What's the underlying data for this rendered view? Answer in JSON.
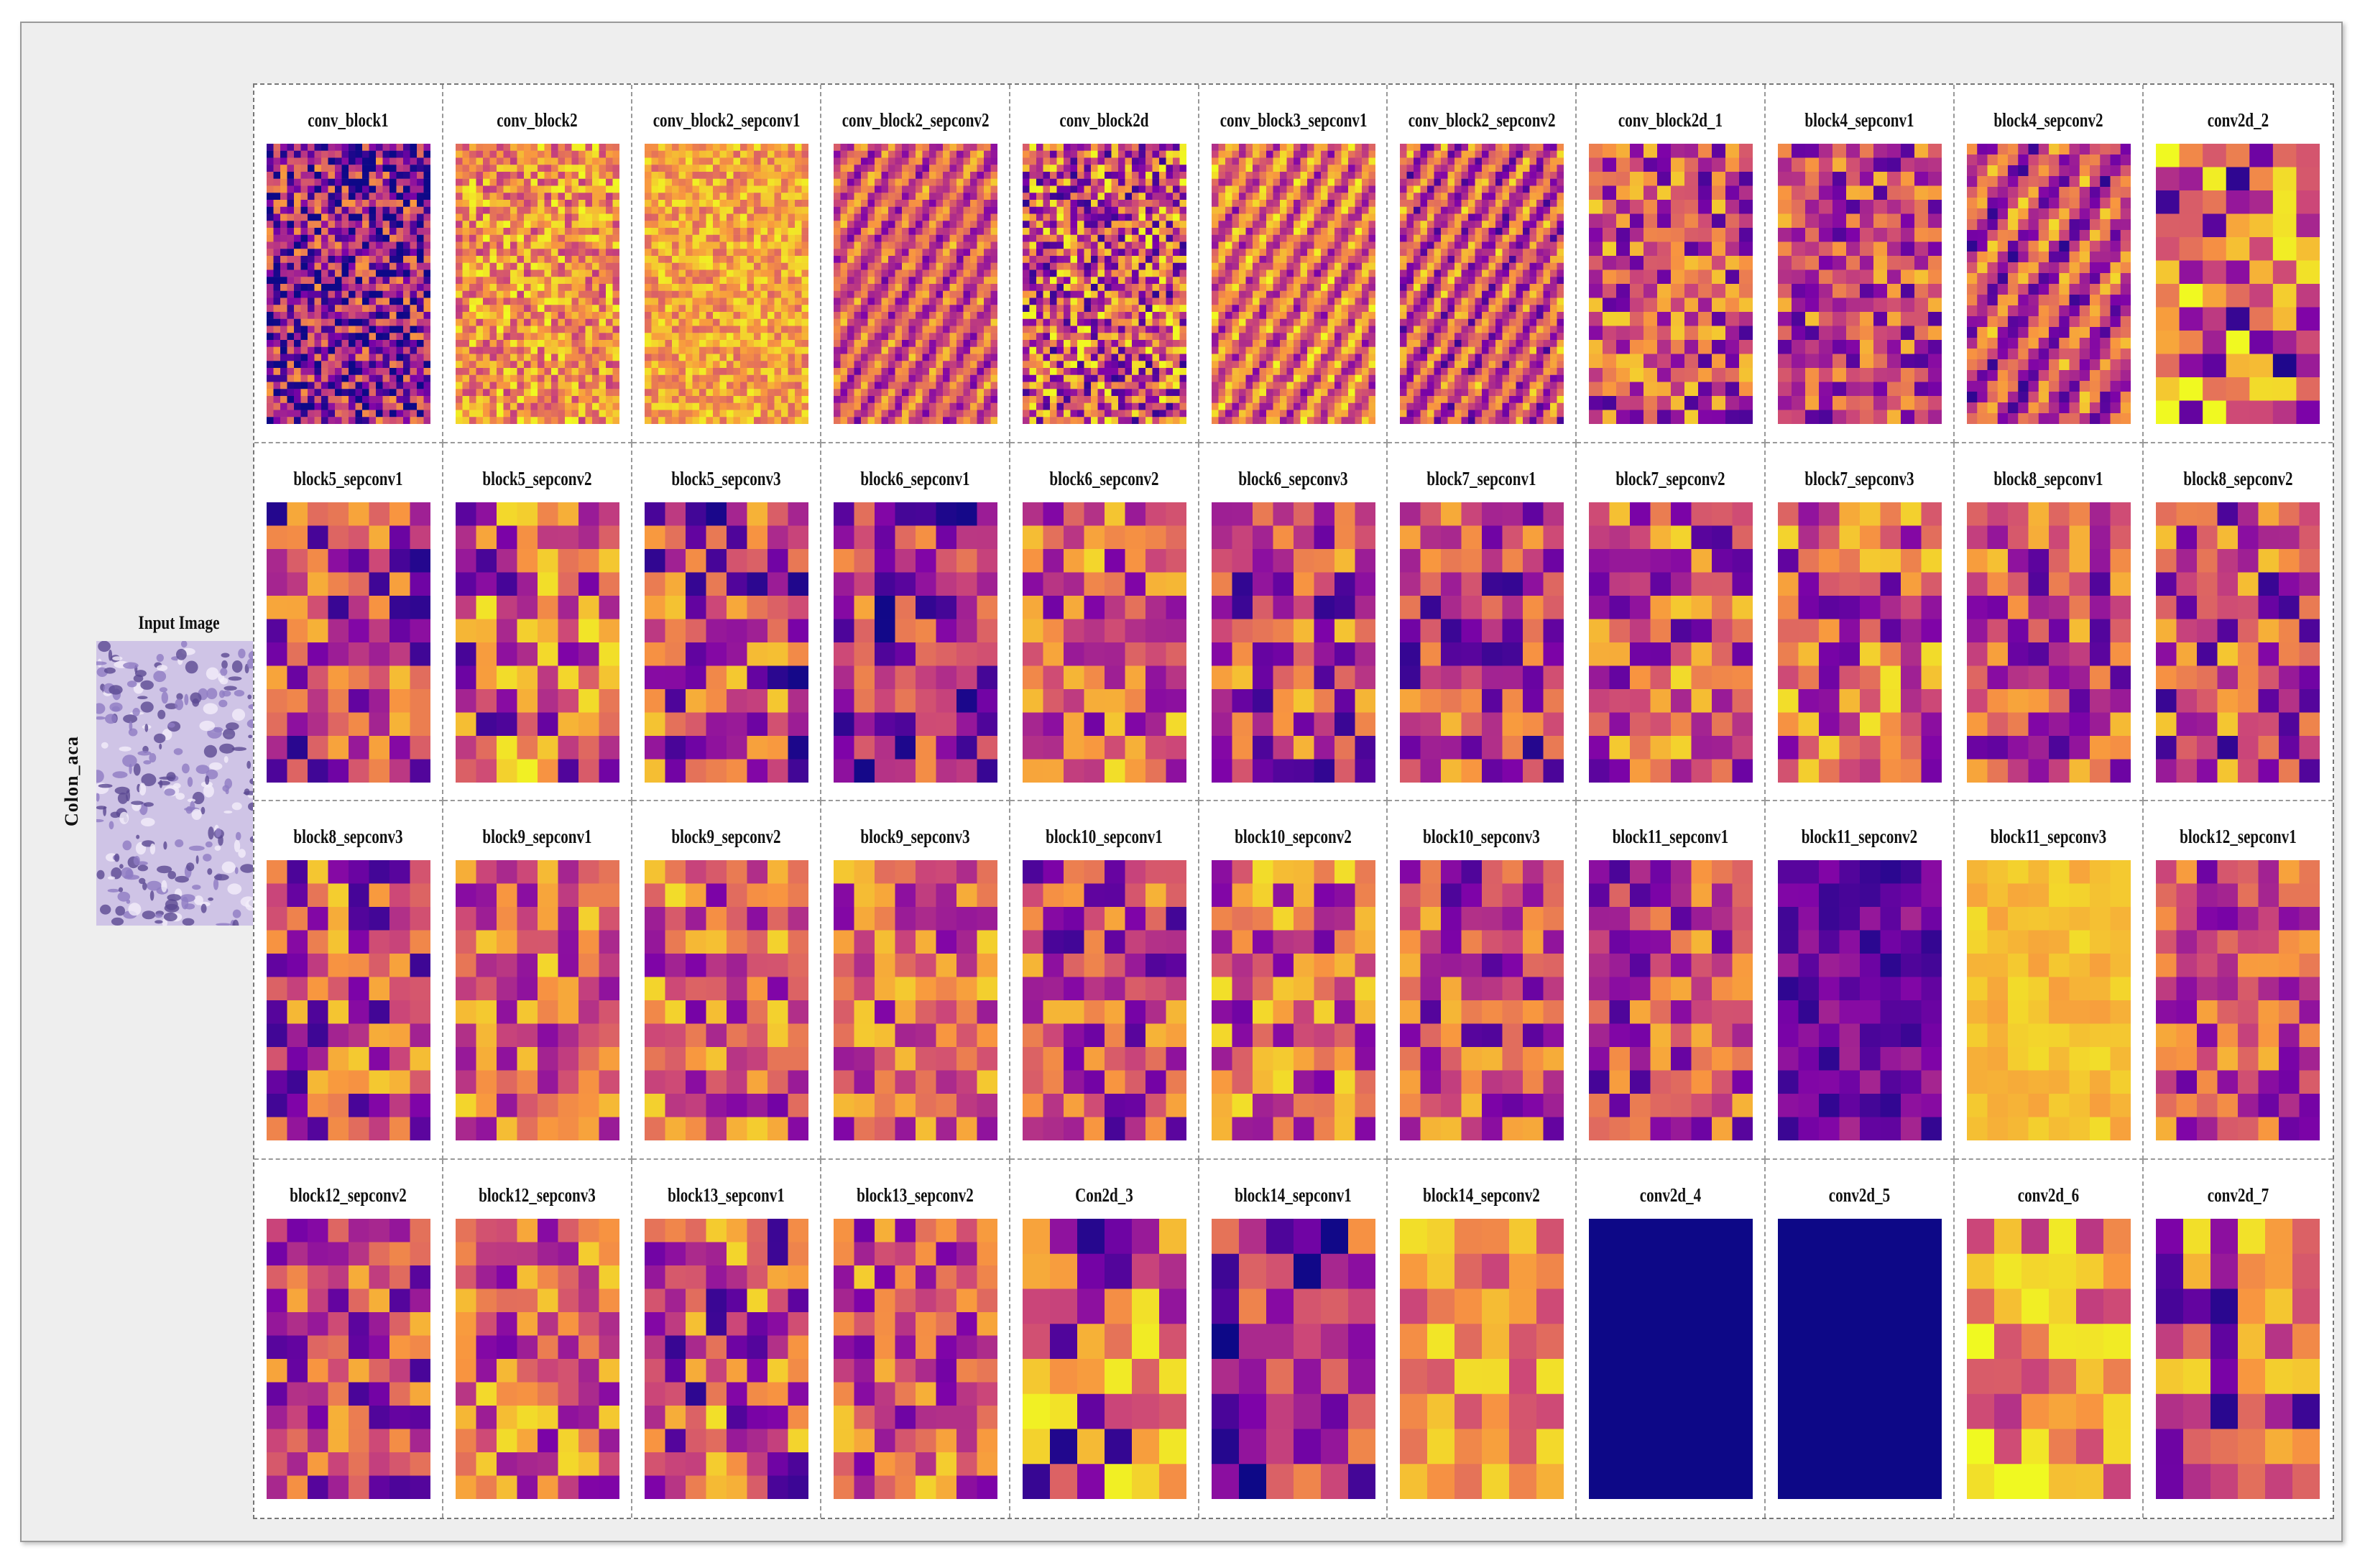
{
  "row_label": "Colon_aca",
  "input_title": "Input Image",
  "feature_maps": [
    {
      "title": "conv_block1",
      "grid": [
        24,
        40
      ],
      "bias": -0.35,
      "spread": 0.55,
      "noise": "fine"
    },
    {
      "title": "conv_block2",
      "grid": [
        24,
        40
      ],
      "bias": 0.45,
      "spread": 0.35,
      "noise": "fine"
    },
    {
      "title": "conv_block2_sepconv1",
      "grid": [
        24,
        40
      ],
      "bias": 0.55,
      "spread": 0.25,
      "noise": "fine"
    },
    {
      "title": "conv_block2_sepconv2",
      "grid": [
        24,
        40
      ],
      "bias": 0.1,
      "spread": 0.45,
      "noise": "stripes"
    },
    {
      "title": "conv_block2d",
      "grid": [
        24,
        40
      ],
      "bias": 0.1,
      "spread": 0.6,
      "noise": "fine"
    },
    {
      "title": "conv_block3_sepconv1",
      "grid": [
        24,
        40
      ],
      "bias": 0.25,
      "spread": 0.5,
      "noise": "stripes"
    },
    {
      "title": "conv_block2_sepconv2",
      "grid": [
        24,
        40
      ],
      "bias": 0.05,
      "spread": 0.55,
      "noise": "stripes"
    },
    {
      "title": "conv_block2d_1",
      "grid": [
        12,
        20
      ],
      "bias": 0.0,
      "spread": 0.5,
      "noise": "blocks"
    },
    {
      "title": "block4_sepconv1",
      "grid": [
        12,
        20
      ],
      "bias": 0.0,
      "spread": 0.45,
      "noise": "blocks"
    },
    {
      "title": "block4_sepconv2",
      "grid": [
        16,
        26
      ],
      "bias": 0.0,
      "spread": 0.55,
      "noise": "stripes"
    },
    {
      "title": "conv2d_2",
      "grid": [
        7,
        12
      ],
      "bias": 0.1,
      "spread": 0.65,
      "noise": "blocks"
    },
    {
      "title": "block5_sepconv1",
      "grid": [
        8,
        12
      ],
      "bias": -0.1,
      "spread": 0.5,
      "noise": "blocks"
    },
    {
      "title": "block5_sepconv2",
      "grid": [
        8,
        12
      ],
      "bias": 0.1,
      "spread": 0.55,
      "noise": "blocks"
    },
    {
      "title": "block5_sepconv3",
      "grid": [
        8,
        12
      ],
      "bias": -0.1,
      "spread": 0.55,
      "noise": "blocks"
    },
    {
      "title": "block6_sepconv1",
      "grid": [
        8,
        12
      ],
      "bias": -0.2,
      "spread": 0.5,
      "noise": "blocks"
    },
    {
      "title": "block6_sepconv2",
      "grid": [
        8,
        12
      ],
      "bias": 0.15,
      "spread": 0.45,
      "noise": "blocks"
    },
    {
      "title": "block6_sepconv3",
      "grid": [
        8,
        12
      ],
      "bias": -0.05,
      "spread": 0.5,
      "noise": "blocks"
    },
    {
      "title": "block7_sepconv1",
      "grid": [
        8,
        12
      ],
      "bias": -0.1,
      "spread": 0.5,
      "noise": "blocks"
    },
    {
      "title": "block7_sepconv2",
      "grid": [
        8,
        12
      ],
      "bias": 0.05,
      "spread": 0.5,
      "noise": "blocks"
    },
    {
      "title": "block7_sepconv3",
      "grid": [
        8,
        12
      ],
      "bias": 0.1,
      "spread": 0.5,
      "noise": "blocks"
    },
    {
      "title": "block8_sepconv1",
      "grid": [
        8,
        12
      ],
      "bias": 0.0,
      "spread": 0.45,
      "noise": "blocks"
    },
    {
      "title": "block8_sepconv2",
      "grid": [
        8,
        12
      ],
      "bias": -0.05,
      "spread": 0.5,
      "noise": "blocks"
    },
    {
      "title": "block8_sepconv3",
      "grid": [
        8,
        12
      ],
      "bias": 0.0,
      "spread": 0.5,
      "noise": "blocks"
    },
    {
      "title": "block9_sepconv1",
      "grid": [
        8,
        12
      ],
      "bias": 0.2,
      "spread": 0.4,
      "noise": "blocks"
    },
    {
      "title": "block9_sepconv2",
      "grid": [
        8,
        12
      ],
      "bias": 0.15,
      "spread": 0.45,
      "noise": "blocks"
    },
    {
      "title": "block9_sepconv3",
      "grid": [
        8,
        12
      ],
      "bias": 0.15,
      "spread": 0.4,
      "noise": "blocks"
    },
    {
      "title": "block10_sepconv1",
      "grid": [
        8,
        12
      ],
      "bias": -0.05,
      "spread": 0.45,
      "noise": "blocks"
    },
    {
      "title": "block10_sepconv2",
      "grid": [
        8,
        12
      ],
      "bias": 0.15,
      "spread": 0.45,
      "noise": "blocks"
    },
    {
      "title": "block10_sepconv3",
      "grid": [
        8,
        12
      ],
      "bias": 0.0,
      "spread": 0.45,
      "noise": "blocks"
    },
    {
      "title": "block11_sepconv1",
      "grid": [
        8,
        12
      ],
      "bias": -0.05,
      "spread": 0.45,
      "noise": "blocks"
    },
    {
      "title": "block11_sepconv2",
      "grid": [
        8,
        12
      ],
      "bias": -0.55,
      "spread": 0.2,
      "noise": "blocks"
    },
    {
      "title": "block11_sepconv3",
      "grid": [
        8,
        12
      ],
      "bias": 0.7,
      "spread": 0.1,
      "noise": "blocks"
    },
    {
      "title": "block12_sepconv1",
      "grid": [
        8,
        12
      ],
      "bias": 0.05,
      "spread": 0.4,
      "noise": "blocks"
    },
    {
      "title": "block12_sepconv2",
      "grid": [
        8,
        12
      ],
      "bias": -0.05,
      "spread": 0.45,
      "noise": "blocks"
    },
    {
      "title": "block12_sepconv3",
      "grid": [
        8,
        12
      ],
      "bias": 0.15,
      "spread": 0.45,
      "noise": "blocks"
    },
    {
      "title": "block13_sepconv1",
      "grid": [
        8,
        12
      ],
      "bias": 0.0,
      "spread": 0.55,
      "noise": "blocks"
    },
    {
      "title": "block13_sepconv2",
      "grid": [
        8,
        12
      ],
      "bias": 0.15,
      "spread": 0.45,
      "noise": "blocks"
    },
    {
      "title": "Con2d_3",
      "grid": [
        6,
        8
      ],
      "bias": 0.0,
      "spread": 0.6,
      "noise": "blocks"
    },
    {
      "title": "block14_sepconv1",
      "grid": [
        6,
        8
      ],
      "bias": -0.3,
      "spread": 0.5,
      "noise": "blocks"
    },
    {
      "title": "block14_sepconv2",
      "grid": [
        6,
        8
      ],
      "bias": 0.45,
      "spread": 0.3,
      "noise": "blocks"
    },
    {
      "title": "conv2d_4",
      "grid": [
        1,
        1
      ],
      "bias": -1.0,
      "spread": 0.0,
      "noise": "solid"
    },
    {
      "title": "conv2d_5",
      "grid": [
        1,
        1
      ],
      "bias": -1.0,
      "spread": 0.0,
      "noise": "solid"
    },
    {
      "title": "conv2d_6",
      "grid": [
        6,
        8
      ],
      "bias": 0.45,
      "spread": 0.4,
      "noise": "blocks"
    },
    {
      "title": "conv2d_7",
      "grid": [
        6,
        8
      ],
      "bias": 0.0,
      "spread": 0.55,
      "noise": "blocks"
    }
  ],
  "colormap": "plasma"
}
